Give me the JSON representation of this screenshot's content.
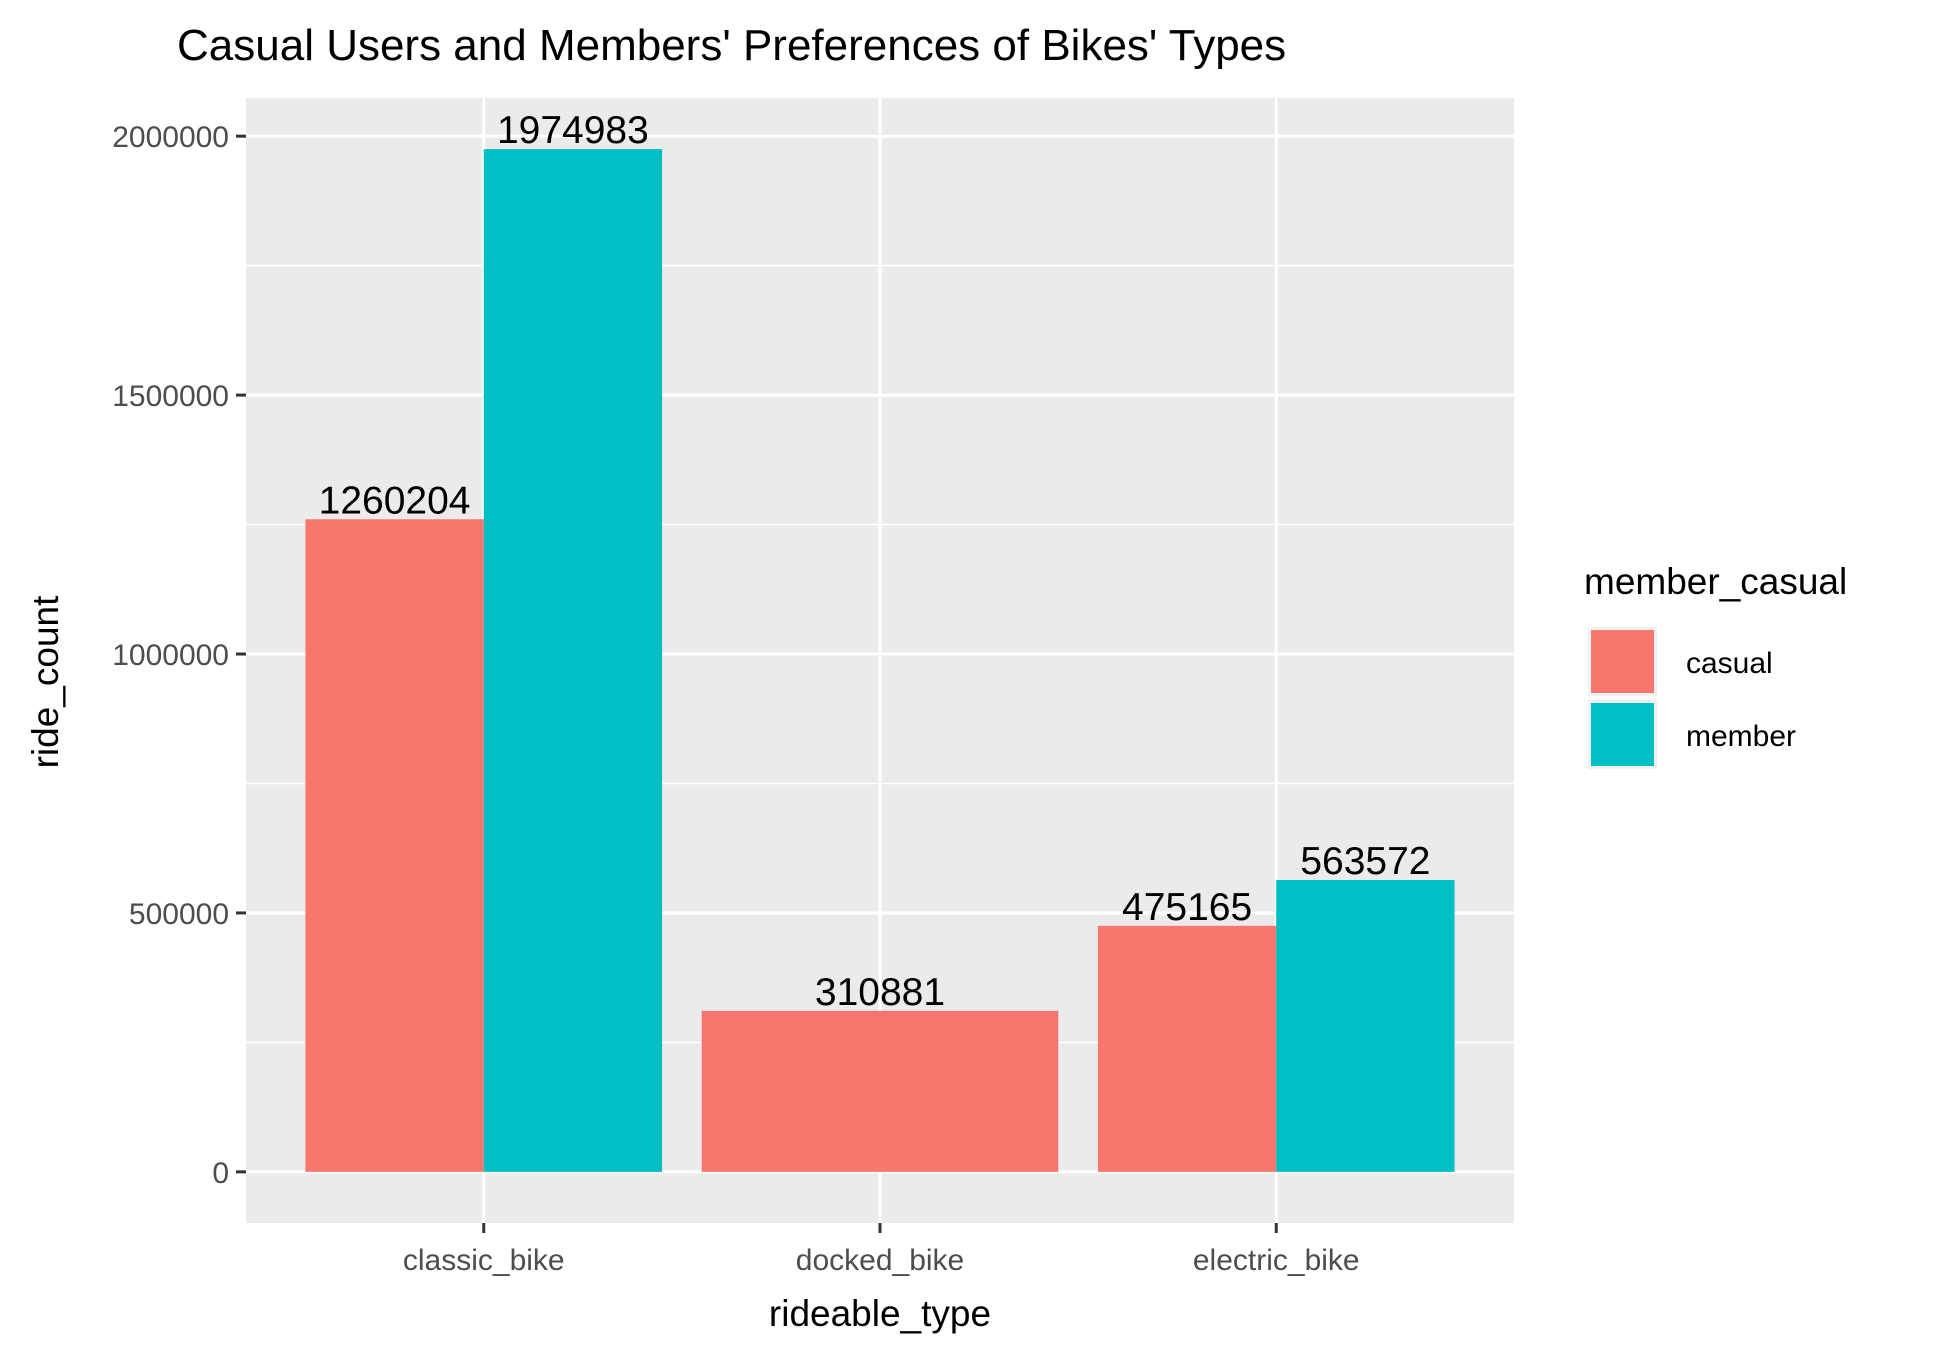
{
  "chart_data": {
    "type": "bar",
    "title": "Casual Users and Members' Preferences of Bikes' Types",
    "xlabel": "rideable_type",
    "ylabel": "ride_count",
    "categories": [
      "classic_bike",
      "docked_bike",
      "electric_bike"
    ],
    "series": [
      {
        "name": "casual",
        "color": "#F8766D",
        "values": [
          1260204,
          310881,
          475165
        ]
      },
      {
        "name": "member",
        "color": "#00BFC4",
        "values": [
          1974983,
          null,
          563572
        ]
      }
    ],
    "data_labels": {
      "casual": [
        "1260204",
        "310881",
        "475165"
      ],
      "member": [
        "1974983",
        "",
        "563572"
      ]
    },
    "y_ticks": [
      0,
      500000,
      1000000,
      1500000,
      2000000
    ],
    "y_tick_labels": [
      "0",
      "500000",
      "1000000",
      "1500000",
      "2000000"
    ],
    "ylim": [
      -98750,
      2073732
    ],
    "grid": true,
    "panel_background": "#EBEBEB",
    "legend": {
      "title": "member_casual",
      "position": "right"
    }
  }
}
